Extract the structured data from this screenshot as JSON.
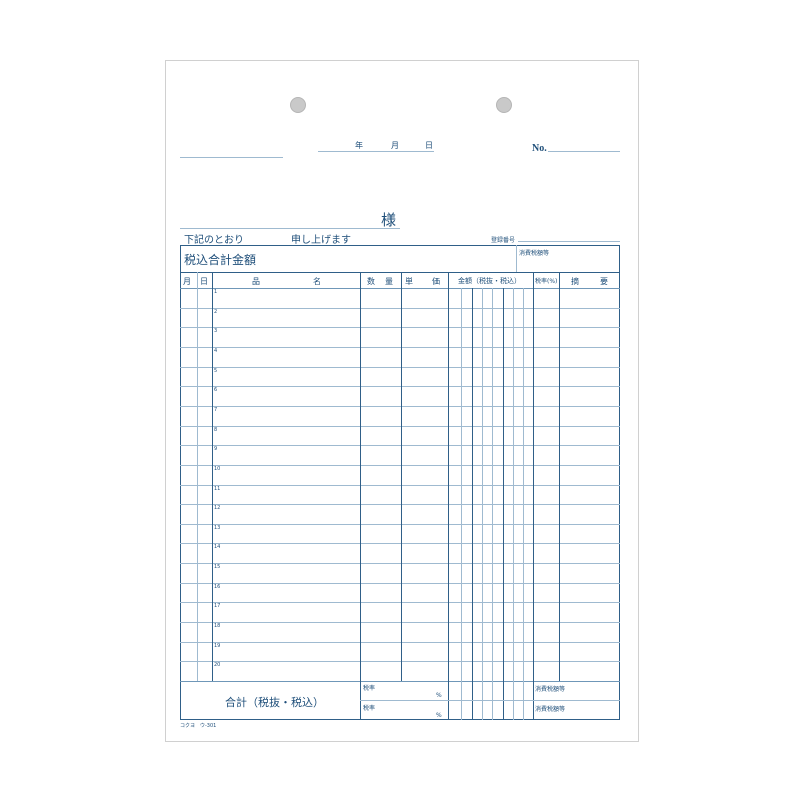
{
  "header": {
    "date_labels": [
      "年",
      "月",
      "日"
    ],
    "number_label": "No.",
    "addressee_suffix": "様",
    "intro_left": "下記のとおり",
    "intro_right": "申し上げます",
    "registration_label": "登録番号"
  },
  "total_box": {
    "label": "税込合計金額",
    "tax_label": "消費税額等"
  },
  "table": {
    "columns": [
      "月",
      "日",
      "品",
      "名",
      "数",
      "量",
      "単",
      "価",
      "金額（税抜・税込）",
      "税率(%)",
      "摘",
      "要"
    ],
    "row_numbers": [
      "1",
      "2",
      "3",
      "4",
      "5",
      "6",
      "7",
      "8",
      "9",
      "10",
      "11",
      "12",
      "13",
      "14",
      "15",
      "16",
      "17",
      "18",
      "19",
      "20"
    ]
  },
  "footer": {
    "total_label": "合計（税抜・税込）",
    "rate_label_1": "税率",
    "percent_1": "%",
    "rate_label_2": "税率",
    "percent_2": "%",
    "tax_label_1": "消費税額等",
    "tax_label_2": "消費税額等",
    "product_code": "コクヨ　ウ-301"
  }
}
